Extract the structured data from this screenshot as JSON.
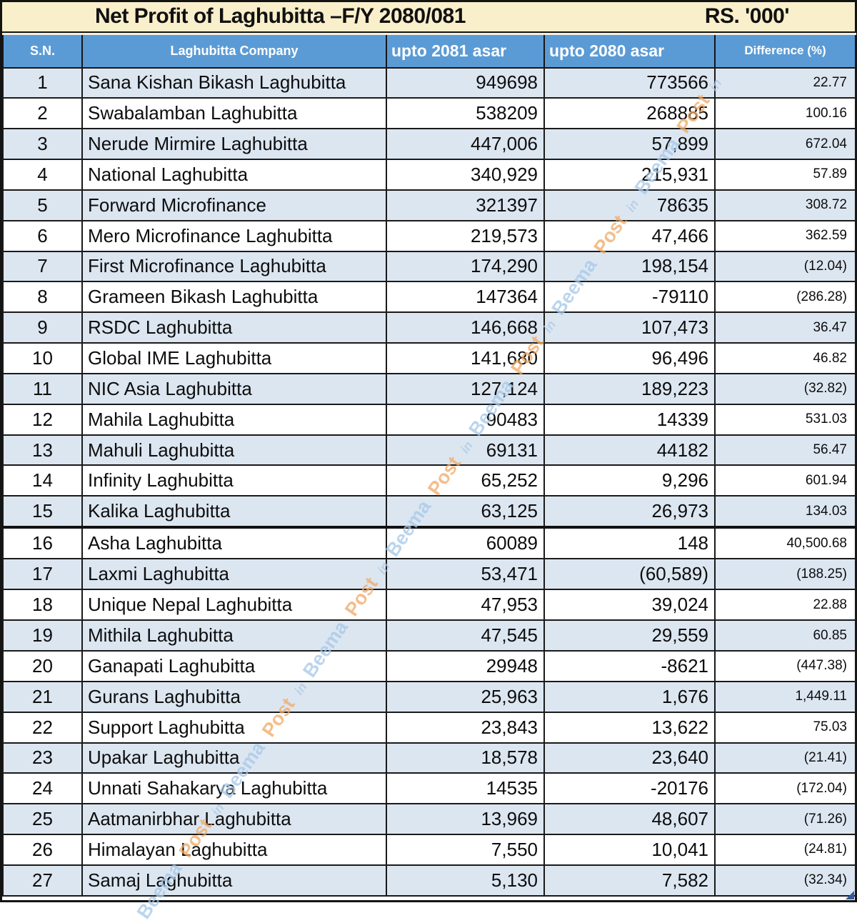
{
  "title": {
    "main": "Net Profit of Laghubitta –F/Y  2080/081",
    "unit": "RS. '000'"
  },
  "columns": [
    "S.N.",
    "Laghubitta Company",
    "upto 2081 asar",
    "upto 2080 asar",
    "Difference (%)"
  ],
  "table": {
    "rows": [
      {
        "sn": "1",
        "company": "Sana Kishan Bikash Laghubitta",
        "y2081": "949698",
        "y2080": "773566",
        "diff": "22.77"
      },
      {
        "sn": "2",
        "company": "Swabalamban Laghubitta",
        "y2081": "538209",
        "y2080": "268885",
        "diff": "100.16"
      },
      {
        "sn": "3",
        "company": "Nerude Mirmire Laghubitta",
        "y2081": "447,006",
        "y2080": "57,899",
        "diff": "672.04"
      },
      {
        "sn": "4",
        "company": "National Laghubitta",
        "y2081": "340,929",
        "y2080": "215,931",
        "diff": "57.89"
      },
      {
        "sn": "5",
        "company": "Forward Microfinance",
        "y2081": "321397",
        "y2080": "78635",
        "diff": "308.72"
      },
      {
        "sn": "6",
        "company": "Mero Microfinance Laghubitta",
        "y2081": "219,573",
        "y2080": "47,466",
        "diff": "362.59"
      },
      {
        "sn": "7",
        "company": "First Microfinance Laghubitta",
        "y2081": "174,290",
        "y2080": "198,154",
        "diff": "(12.04)"
      },
      {
        "sn": "8",
        "company": "Grameen Bikash Laghubitta",
        "y2081": "147364",
        "y2080": "-79110",
        "diff": "(286.28)"
      },
      {
        "sn": "9",
        "company": "RSDC Laghubitta",
        "y2081": "146,668",
        "y2080": "107,473",
        "diff": "36.47"
      },
      {
        "sn": "10",
        "company": "Global IME Laghubitta",
        "y2081": "141,680",
        "y2080": "96,496",
        "diff": "46.82"
      },
      {
        "sn": "11",
        "company": "NIC Asia Laghubitta",
        "y2081": "127,124",
        "y2080": "189,223",
        "diff": "(32.82)"
      },
      {
        "sn": "12",
        "company": "Mahila Laghubitta",
        "y2081": "90483",
        "y2080": "14339",
        "diff": "531.03"
      },
      {
        "sn": "13",
        "company": "Mahuli Laghubitta",
        "y2081": "69131",
        "y2080": "44182",
        "diff": "56.47"
      },
      {
        "sn": "14",
        "company": "Infinity Laghubitta",
        "y2081": "65,252",
        "y2080": "9,296",
        "diff": "601.94"
      },
      {
        "sn": "15",
        "company": "Kalika Laghubitta",
        "y2081": "63,125",
        "y2080": "26,973",
        "diff": "134.03"
      },
      {
        "sn": "16",
        "company": "Asha Laghubitta",
        "y2081": "60089",
        "y2080": "148",
        "diff": "40,500.68"
      },
      {
        "sn": "17",
        "company": "Laxmi Laghubitta",
        "y2081": "53,471",
        "y2080": "(60,589)",
        "diff": "(188.25)"
      },
      {
        "sn": "18",
        "company": "Unique Nepal Laghubitta",
        "y2081": "47,953",
        "y2080": "39,024",
        "diff": "22.88"
      },
      {
        "sn": "19",
        "company": "Mithila Laghubitta",
        "y2081": "47,545",
        "y2080": "29,559",
        "diff": "60.85"
      },
      {
        "sn": "20",
        "company": "Ganapati Laghubitta",
        "y2081": "29948",
        "y2080": "-8621",
        "diff": "(447.38)"
      },
      {
        "sn": "21",
        "company": "Gurans Laghubitta",
        "y2081": "25,963",
        "y2080": "1,676",
        "diff": "1,449.11"
      },
      {
        "sn": "22",
        "company": "Support Laghubitta",
        "y2081": "23,843",
        "y2080": "13,622",
        "diff": "75.03"
      },
      {
        "sn": "23",
        "company": "Upakar Laghubitta",
        "y2081": "18,578",
        "y2080": "23,640",
        "diff": "(21.41)"
      },
      {
        "sn": "24",
        "company": "Unnati Sahakarya Laghubitta",
        "y2081": "14535",
        "y2080": "-20176",
        "diff": "(172.04)"
      },
      {
        "sn": "25",
        "company": "Aatmanirbhar Laghubitta",
        "y2081": "13,969",
        "y2080": "48,607",
        "diff": "(71.26)"
      },
      {
        "sn": "26",
        "company": "Himalayan Laghubitta",
        "y2081": "7,550",
        "y2080": "10,041",
        "diff": "(24.81)"
      },
      {
        "sn": "27",
        "company": "Samaj Laghubitta",
        "y2081": "5,130",
        "y2080": "7,582",
        "diff": "(32.34)"
      }
    ]
  },
  "watermark": {
    "words": [
      "Beema",
      "Post",
      "in"
    ],
    "repeats": 7,
    "color_beema": "#a5c8e8",
    "color_post": "#f0a963",
    "color_in": "#aecbe5"
  },
  "colors": {
    "title_bg": "#f9efcb",
    "header_bg": "#5b9bd5",
    "header_text": "#ffffff",
    "row_alt_bg": "#dce6f1",
    "row_bg": "#ffffff",
    "grid_border": "#1a1a1a",
    "selection_handle": "#2e5b9f"
  }
}
